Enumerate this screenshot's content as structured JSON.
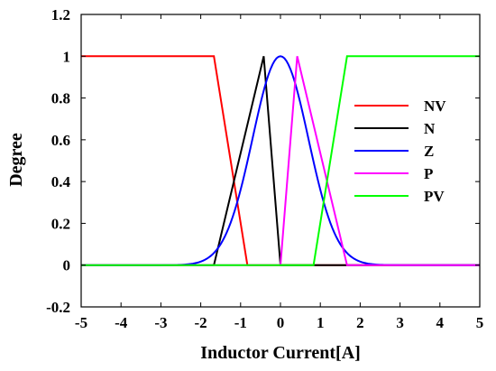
{
  "chart_data": {
    "type": "line",
    "xlabel": "Inductor Current[A]",
    "ylabel": "Degree",
    "xlim": [
      -5,
      5
    ],
    "ylim": [
      -0.2,
      1.2
    ],
    "xticks": [
      "-5",
      "-4",
      "-3",
      "-2",
      "-1",
      "0",
      "1",
      "2",
      "3",
      "4",
      "5"
    ],
    "yticks": [
      "-0.2",
      "0",
      "0.2",
      "0.4",
      "0.6",
      "0.8",
      "1",
      "1.2"
    ],
    "legend_position": "right",
    "grid": false,
    "series": [
      {
        "name": "NV",
        "color": "#ff0000",
        "x": [
          -5,
          -1.67,
          -0.83,
          5
        ],
        "y": [
          1,
          1,
          0,
          0
        ]
      },
      {
        "name": "N",
        "color": "#000000",
        "x": [
          -5,
          -1.67,
          -0.42,
          0,
          5
        ],
        "y": [
          0,
          0,
          1,
          0,
          0
        ]
      },
      {
        "name": "Z",
        "color": "#0000ff",
        "curve": "gaussian",
        "center": 0,
        "sigma": 0.7,
        "x_range": [
          -5,
          5
        ]
      },
      {
        "name": "P",
        "color": "#ff00ff",
        "x": [
          -5,
          0,
          0.42,
          1.67,
          5
        ],
        "y": [
          0,
          0,
          1,
          0,
          0
        ]
      },
      {
        "name": "PV",
        "color": "#00ff00",
        "x": [
          -5,
          0.83,
          1.67,
          5
        ],
        "y": [
          0,
          0,
          1,
          1
        ]
      }
    ]
  }
}
